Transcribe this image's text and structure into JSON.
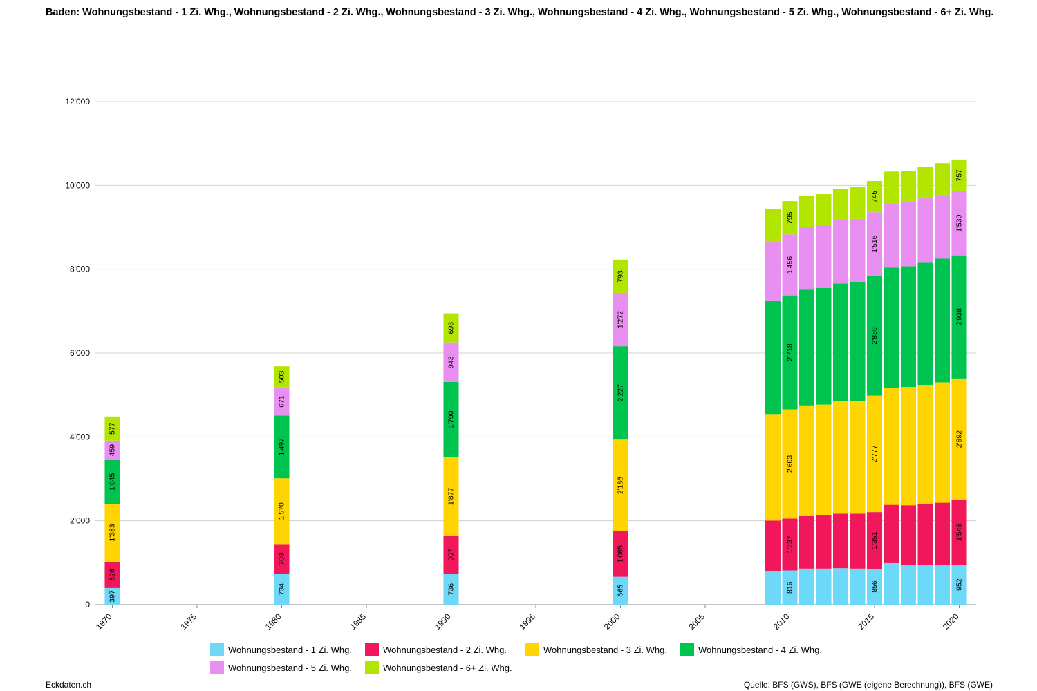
{
  "title": "Baden: Wohnungsbestand - 1 Zi. Whg., Wohnungsbestand - 2 Zi. Whg., Wohnungsbestand - 3 Zi. Whg., Wohnungsbestand - 4 Zi. Whg., Wohnungsbestand - 5 Zi. Whg., Wohnungsbestand - 6+ Zi. Whg.",
  "footer": {
    "left": "Eckdaten.ch",
    "right": "Quelle: BFS (GWS), BFS (GWE (eigene Berechnung)), BFS (GWE)"
  },
  "chart_data": {
    "type": "bar",
    "stacked": true,
    "xlabel": "",
    "ylabel": "",
    "xlim": [
      1969,
      2021
    ],
    "ylim": [
      0,
      12000
    ],
    "x_ticks": [
      1970,
      1975,
      1980,
      1985,
      1990,
      1995,
      2000,
      2005,
      2010,
      2015,
      2020
    ],
    "y_ticks": [
      0,
      2000,
      4000,
      6000,
      8000,
      10000,
      12000
    ],
    "y_tick_labels": [
      "0",
      "2'000",
      "4'000",
      "6'000",
      "8'000",
      "10'000",
      "12'000"
    ],
    "grid": true,
    "legend_position": "bottom",
    "x": [
      1970,
      1980,
      1990,
      2000,
      2009,
      2010,
      2011,
      2012,
      2013,
      2014,
      2015,
      2016,
      2017,
      2018,
      2019,
      2020
    ],
    "labeled_years": [
      1970,
      1980,
      1990,
      2000,
      2010,
      2015,
      2020
    ],
    "series": [
      {
        "name": "Wohnungsbestand - 1 Zi. Whg.",
        "color": "#6dd8f8",
        "values": [
          397,
          734,
          736,
          665,
          805,
          816,
          860,
          860,
          870,
          860,
          856,
          990,
          950,
          950,
          950,
          952
        ]
      },
      {
        "name": "Wohnungsbestand - 2 Zi. Whg.",
        "color": "#f0175a",
        "values": [
          626,
          709,
          907,
          1085,
          1200,
          1237,
          1250,
          1270,
          1300,
          1310,
          1351,
          1390,
          1420,
          1460,
          1480,
          1548
        ]
      },
      {
        "name": "Wohnungsbestand - 3 Zi. Whg.",
        "color": "#ffd400",
        "values": [
          1383,
          1570,
          1877,
          2186,
          2540,
          2603,
          2640,
          2640,
          2690,
          2690,
          2777,
          2780,
          2820,
          2830,
          2870,
          2892
        ]
      },
      {
        "name": "Wohnungsbestand - 4 Zi. Whg.",
        "color": "#00c450",
        "values": [
          1045,
          1497,
          1790,
          2227,
          2700,
          2718,
          2780,
          2780,
          2800,
          2840,
          2859,
          2880,
          2880,
          2930,
          2950,
          2938
        ]
      },
      {
        "name": "Wohnungsbestand - 5 Zi. Whg.",
        "color": "#e98ff2",
        "values": [
          459,
          671,
          943,
          1272,
          1420,
          1456,
          1480,
          1500,
          1520,
          1500,
          1516,
          1530,
          1530,
          1520,
          1520,
          1530
        ]
      },
      {
        "name": "Wohnungsbestand - 6+ Zi. Whg.",
        "color": "#b2e600",
        "values": [
          577,
          503,
          693,
          793,
          780,
          795,
          750,
          740,
          740,
          770,
          745,
          760,
          740,
          760,
          760,
          757
        ]
      }
    ]
  }
}
